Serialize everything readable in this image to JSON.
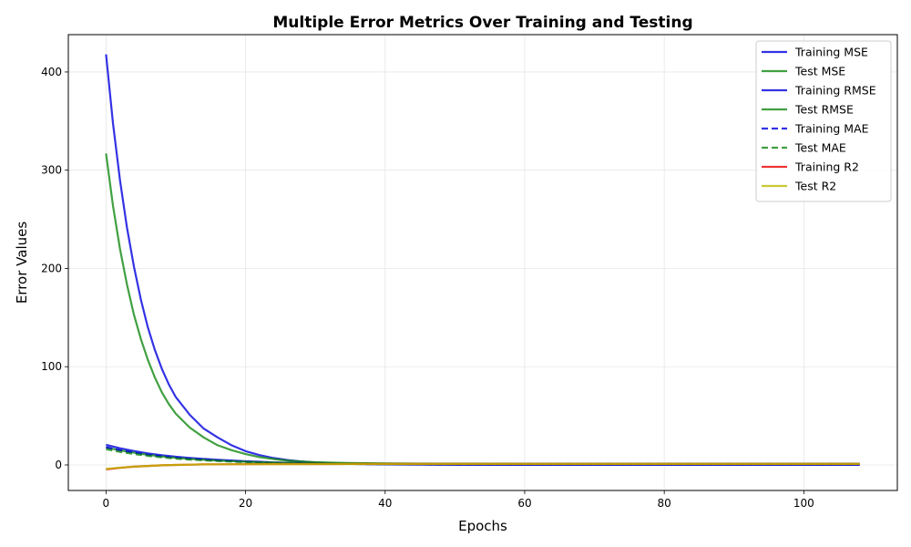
{
  "chart_data": {
    "type": "line",
    "title": "Multiple Error Metrics Over Training and Testing",
    "xlabel": "Epochs",
    "ylabel": "Error Values",
    "xlim": [
      -5.4,
      113.4
    ],
    "ylim": [
      -26,
      438
    ],
    "xticks": [
      0,
      20,
      40,
      60,
      80,
      100
    ],
    "yticks": [
      0,
      100,
      200,
      300,
      400
    ],
    "grid": true,
    "legend_position": "upper right",
    "x_range": [
      0,
      108
    ],
    "series": [
      {
        "name": "Training MSE",
        "color": "#0000dd",
        "dash": "solid",
        "x": [
          0,
          1,
          2,
          3,
          4,
          5,
          6,
          7,
          8,
          9,
          10,
          12,
          14,
          16,
          18,
          20,
          22,
          24,
          26,
          28,
          30,
          33,
          36,
          40,
          45,
          50,
          60,
          70,
          80,
          90,
          100,
          108
        ],
        "y": [
          418,
          348,
          290,
          242,
          202,
          168,
          140,
          117,
          98,
          82,
          69,
          51,
          37,
          28,
          20,
          14,
          10,
          7,
          5,
          3.5,
          2.5,
          1.5,
          1,
          0.5,
          0.3,
          0.2,
          0.1,
          0.1,
          0.1,
          0.1,
          0.1,
          0.1
        ]
      },
      {
        "name": "Test MSE",
        "color": "#118811",
        "dash": "solid",
        "x": [
          0,
          1,
          2,
          3,
          4,
          5,
          6,
          7,
          8,
          9,
          10,
          12,
          14,
          16,
          18,
          20,
          22,
          24,
          26,
          28,
          30,
          33,
          36,
          40,
          45,
          50,
          60,
          70,
          80,
          90,
          100,
          108
        ],
        "y": [
          317,
          264,
          220,
          184,
          153,
          128,
          107,
          89,
          74,
          62,
          52,
          38,
          28,
          20,
          15,
          11,
          8,
          6,
          4.5,
          3.5,
          2.8,
          2.2,
          1.8,
          1.5,
          1.3,
          1.2,
          1.1,
          1.1,
          1.1,
          1.1,
          1.1,
          1.1
        ]
      },
      {
        "name": "Training RMSE",
        "color": "#0000dd",
        "dash": "solid",
        "x": [
          0,
          2,
          4,
          6,
          8,
          10,
          12,
          14,
          16,
          18,
          20,
          22,
          24,
          26,
          28,
          30,
          33,
          36,
          40,
          45,
          50,
          60,
          70,
          80,
          90,
          100,
          108
        ],
        "y": [
          20.4,
          17,
          14.2,
          11.8,
          9.9,
          8.3,
          7.1,
          6.1,
          5.3,
          4.5,
          3.7,
          3.2,
          2.6,
          2.2,
          1.9,
          1.6,
          1.2,
          1,
          0.7,
          0.5,
          0.4,
          0.3,
          0.3,
          0.3,
          0.3,
          0.3,
          0.3
        ]
      },
      {
        "name": "Test RMSE",
        "color": "#118811",
        "dash": "solid",
        "x": [
          0,
          2,
          4,
          6,
          8,
          10,
          12,
          14,
          16,
          18,
          20,
          22,
          24,
          26,
          28,
          30,
          33,
          36,
          40,
          45,
          50,
          60,
          70,
          80,
          90,
          100,
          108
        ],
        "y": [
          17.8,
          14.8,
          12.4,
          10.3,
          8.6,
          7.2,
          6.2,
          5.3,
          4.5,
          3.9,
          3.3,
          2.8,
          2.4,
          2.1,
          1.9,
          1.7,
          1.5,
          1.3,
          1.2,
          1.1,
          1.1,
          1,
          1,
          1,
          1,
          1,
          1
        ]
      },
      {
        "name": "Training MAE",
        "color": "#0000dd",
        "dash": "dashed",
        "x": [
          0,
          2,
          4,
          6,
          8,
          10,
          12,
          14,
          16,
          18,
          20,
          22,
          24,
          26,
          28,
          30,
          33,
          36,
          40,
          45,
          50,
          60,
          70,
          80,
          90,
          100,
          108
        ],
        "y": [
          18,
          15,
          12.5,
          10.4,
          8.7,
          7.3,
          6.2,
          5.3,
          4.5,
          3.8,
          3.2,
          2.7,
          2.3,
          2,
          1.7,
          1.4,
          1.1,
          0.9,
          0.6,
          0.5,
          0.4,
          0.3,
          0.3,
          0.3,
          0.3,
          0.3,
          0.3
        ]
      },
      {
        "name": "Test MAE",
        "color": "#118811",
        "dash": "dashed",
        "x": [
          0,
          2,
          4,
          6,
          8,
          10,
          12,
          14,
          16,
          18,
          20,
          22,
          24,
          26,
          28,
          30,
          33,
          36,
          40,
          45,
          50,
          60,
          70,
          80,
          90,
          100,
          108
        ],
        "y": [
          16,
          13.3,
          11.1,
          9.3,
          7.7,
          6.5,
          5.5,
          4.7,
          4,
          3.4,
          2.9,
          2.5,
          2.1,
          1.8,
          1.6,
          1.5,
          1.3,
          1.2,
          1.1,
          1,
          1,
          1,
          1,
          1,
          1,
          1,
          1
        ]
      },
      {
        "name": "Training R2",
        "color": "#ee0000",
        "dash": "solid",
        "x": [
          0,
          2,
          4,
          6,
          8,
          10,
          12,
          14,
          16,
          18,
          20,
          24,
          28,
          32,
          36,
          40,
          50,
          60,
          70,
          80,
          90,
          100,
          108
        ],
        "y": [
          -4.5,
          -3,
          -1.8,
          -1,
          -0.4,
          0,
          0.3,
          0.5,
          0.65,
          0.75,
          0.8,
          0.88,
          0.92,
          0.95,
          0.97,
          0.98,
          0.99,
          0.99,
          0.99,
          0.99,
          0.99,
          0.99,
          0.99
        ]
      },
      {
        "name": "Test R2",
        "color": "#bbbb00",
        "dash": "solid",
        "x": [
          0,
          2,
          4,
          6,
          8,
          10,
          12,
          14,
          16,
          18,
          20,
          24,
          28,
          32,
          36,
          40,
          50,
          60,
          70,
          80,
          90,
          100,
          108
        ],
        "y": [
          -4,
          -2.8,
          -1.7,
          -1,
          -0.4,
          0,
          0.3,
          0.5,
          0.62,
          0.7,
          0.75,
          0.82,
          0.86,
          0.88,
          0.9,
          0.9,
          0.9,
          0.9,
          0.9,
          0.9,
          0.9,
          0.9,
          0.9
        ]
      }
    ]
  }
}
